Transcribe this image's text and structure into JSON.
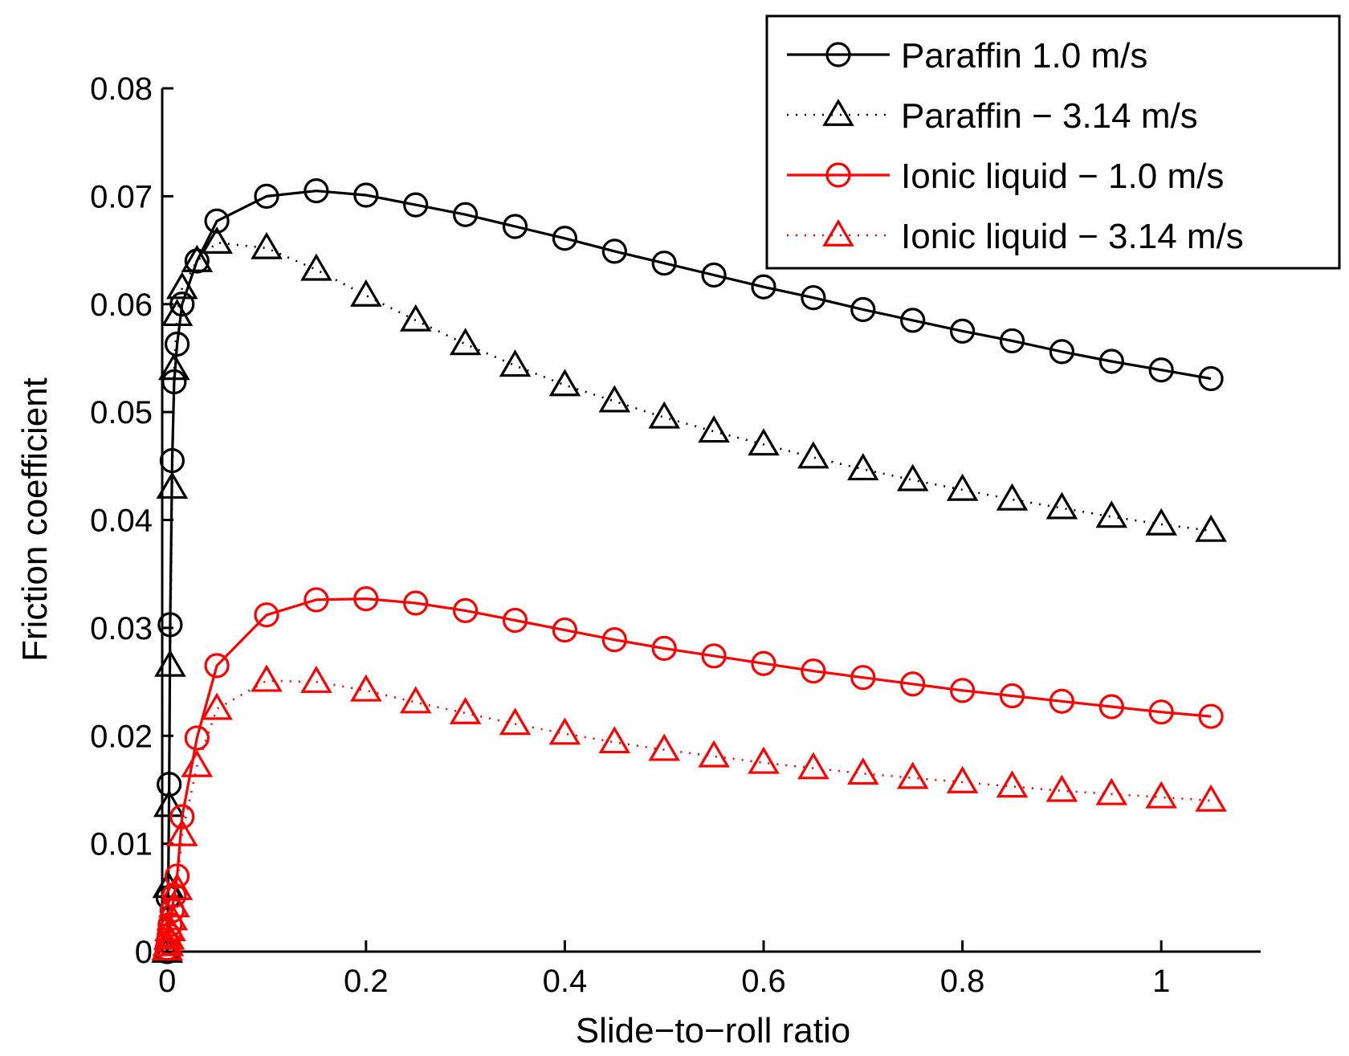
{
  "chart_data": {
    "type": "line",
    "title": "",
    "xlabel": "Slide−to−roll ratio",
    "ylabel": "Friction coefficient",
    "xlim": [
      -0.005,
      1.1
    ],
    "ylim": [
      0,
      0.08
    ],
    "xticks": [
      0,
      0.2,
      0.4,
      0.6,
      0.8,
      1
    ],
    "xtick_labels": [
      "0",
      "0.2",
      "0.4",
      "0.6",
      "0.8",
      "1"
    ],
    "yticks": [
      0,
      0.01,
      0.02,
      0.03,
      0.04,
      0.05,
      0.06,
      0.07,
      0.08
    ],
    "ytick_labels": [
      "0",
      "0.01",
      "0.02",
      "0.03",
      "0.04",
      "0.05",
      "0.06",
      "0.07",
      "0.08"
    ],
    "grid": false,
    "legend_position": "top-right",
    "series": [
      {
        "name": "Paraffin 1.0 m/s",
        "color": "#000000",
        "line_style": "solid",
        "marker": "circle",
        "x": [
          0,
          0.001,
          0.002,
          0.003,
          0.005,
          0.007,
          0.01,
          0.015,
          0.03,
          0.05,
          0.1,
          0.15,
          0.2,
          0.25,
          0.3,
          0.35,
          0.4,
          0.45,
          0.5,
          0.55,
          0.6,
          0.65,
          0.7,
          0.75,
          0.8,
          0.85,
          0.9,
          0.95,
          1.0,
          1.05
        ],
        "y": [
          0.0,
          0.005,
          0.0155,
          0.0303,
          0.0455,
          0.0528,
          0.0563,
          0.06,
          0.064,
          0.0677,
          0.07,
          0.0705,
          0.0701,
          0.0692,
          0.0683,
          0.0672,
          0.0661,
          0.0649,
          0.0638,
          0.0627,
          0.0616,
          0.0606,
          0.0595,
          0.0585,
          0.0575,
          0.0566,
          0.0556,
          0.0547,
          0.0539,
          0.0531
        ]
      },
      {
        "name": "Paraffin − 3.14 m/s",
        "color": "#000000",
        "line_style": "dotted",
        "marker": "triangle",
        "x": [
          0,
          0.001,
          0.002,
          0.003,
          0.005,
          0.007,
          0.01,
          0.015,
          0.03,
          0.05,
          0.1,
          0.15,
          0.2,
          0.25,
          0.3,
          0.35,
          0.4,
          0.45,
          0.5,
          0.55,
          0.6,
          0.65,
          0.7,
          0.75,
          0.8,
          0.85,
          0.9,
          0.95,
          1.0,
          1.05
        ],
        "y": [
          0.0,
          0.006,
          0.0135,
          0.0265,
          0.043,
          0.054,
          0.059,
          0.0615,
          0.064,
          0.0657,
          0.0652,
          0.0632,
          0.0608,
          0.0585,
          0.0563,
          0.0543,
          0.0525,
          0.051,
          0.0495,
          0.0482,
          0.047,
          0.0458,
          0.0447,
          0.0437,
          0.0428,
          0.0419,
          0.0411,
          0.0403,
          0.0396,
          0.039
        ]
      },
      {
        "name": "Ionic liquid − 1.0 m/s",
        "color": "#ff0000",
        "line_style": "solid",
        "marker": "circle",
        "x": [
          0,
          0.001,
          0.002,
          0.003,
          0.005,
          0.007,
          0.01,
          0.015,
          0.03,
          0.05,
          0.1,
          0.15,
          0.2,
          0.25,
          0.3,
          0.35,
          0.4,
          0.45,
          0.5,
          0.55,
          0.6,
          0.65,
          0.7,
          0.75,
          0.8,
          0.85,
          0.9,
          0.95,
          1.0,
          1.05
        ],
        "y": [
          0.0003,
          0.0008,
          0.0015,
          0.0025,
          0.0038,
          0.0052,
          0.007,
          0.0125,
          0.0198,
          0.0265,
          0.0312,
          0.0326,
          0.0327,
          0.0323,
          0.0316,
          0.0307,
          0.0298,
          0.0289,
          0.0281,
          0.0274,
          0.0267,
          0.026,
          0.0254,
          0.0248,
          0.0242,
          0.0237,
          0.0232,
          0.0227,
          0.0222,
          0.0218
        ]
      },
      {
        "name": "Ionic liquid − 3.14 m/s",
        "color": "#ff0000",
        "line_style": "dotted",
        "marker": "triangle",
        "x": [
          0,
          0.001,
          0.002,
          0.003,
          0.005,
          0.007,
          0.01,
          0.015,
          0.03,
          0.05,
          0.1,
          0.15,
          0.2,
          0.25,
          0.3,
          0.35,
          0.4,
          0.45,
          0.5,
          0.55,
          0.6,
          0.65,
          0.7,
          0.75,
          0.8,
          0.85,
          0.9,
          0.95,
          1.0,
          1.05
        ],
        "y": [
          0.0002,
          0.0006,
          0.0012,
          0.002,
          0.003,
          0.0042,
          0.0058,
          0.0108,
          0.0172,
          0.0225,
          0.0251,
          0.025,
          0.0242,
          0.0231,
          0.0221,
          0.0211,
          0.0202,
          0.0194,
          0.0187,
          0.0181,
          0.0175,
          0.017,
          0.0165,
          0.0161,
          0.0157,
          0.0153,
          0.0149,
          0.0146,
          0.0143,
          0.014
        ]
      }
    ]
  }
}
